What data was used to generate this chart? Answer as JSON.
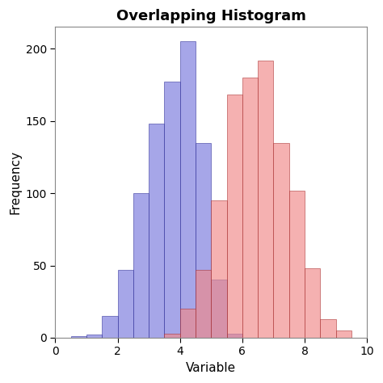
{
  "title": "Overlapping Histogram",
  "xlabel": "Variable",
  "ylabel": "Frequency",
  "xlim": [
    0,
    10
  ],
  "ylim": [
    0,
    215
  ],
  "xticks": [
    0,
    2,
    4,
    6,
    8,
    10
  ],
  "yticks": [
    0,
    50,
    100,
    150,
    200
  ],
  "blue_color": "#7777DD",
  "red_color": "#F08888",
  "blue_edge": "#333399",
  "red_edge": "#AA3333",
  "alpha": 0.65,
  "bin_width": 0.5,
  "blue_bins": {
    "edges": [
      0.5,
      1.0,
      1.5,
      2.0,
      2.5,
      3.0,
      3.5,
      4.0,
      4.5,
      5.0,
      5.5
    ],
    "heights": [
      1,
      2,
      15,
      47,
      100,
      148,
      177,
      205,
      135,
      40,
      3
    ]
  },
  "red_bins": {
    "edges": [
      3.5,
      4.0,
      4.5,
      5.0,
      5.5,
      6.0,
      6.5,
      7.0,
      7.5,
      8.0,
      8.5,
      9.0
    ],
    "heights": [
      3,
      20,
      47,
      95,
      168,
      180,
      192,
      135,
      102,
      48,
      13,
      5
    ]
  },
  "background_color": "#FFFFFF",
  "plot_bg_color": "#FFFFFF",
  "title_fontsize": 13,
  "label_fontsize": 11,
  "tick_fontsize": 10,
  "figsize": [
    4.74,
    4.74
  ],
  "dpi": 100
}
